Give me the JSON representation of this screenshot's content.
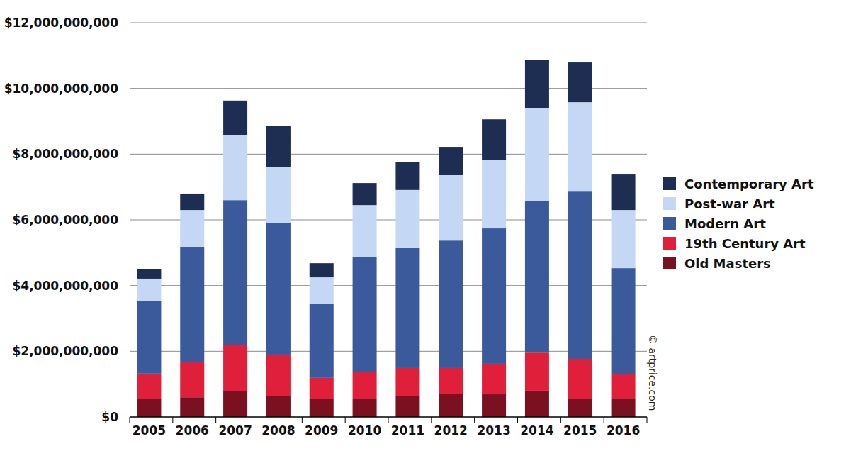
{
  "chart_data": {
    "type": "bar",
    "stacked": true,
    "grid": true,
    "legend": "right",
    "annotation": "© artprice.com",
    "categories": [
      "2005",
      "2006",
      "2007",
      "2008",
      "2009",
      "2010",
      "2011",
      "2012",
      "2013",
      "2014",
      "2015",
      "2016"
    ],
    "ylim": [
      0,
      12000000000
    ],
    "yticks": [
      {
        "value": 0,
        "label": "$0"
      },
      {
        "value": 2000000000,
        "label": "$2,000,000,000"
      },
      {
        "value": 4000000000,
        "label": "$4,000,000,000"
      },
      {
        "value": 6000000000,
        "label": "$6,000,000,000"
      },
      {
        "value": 8000000000,
        "label": "$8,000,000,000"
      },
      {
        "value": 10000000000,
        "label": "$10,000,000,000"
      },
      {
        "value": 12000000000,
        "label": "$12,000,000,000"
      }
    ],
    "series": [
      {
        "name": "Old Masters",
        "color": "#7b1020",
        "values": [
          540000000,
          600000000,
          780000000,
          630000000,
          560000000,
          540000000,
          630000000,
          710000000,
          690000000,
          800000000,
          540000000,
          560000000
        ]
      },
      {
        "name": "19th Century Art",
        "color": "#e0203a",
        "values": [
          780000000,
          1080000000,
          1400000000,
          1270000000,
          630000000,
          840000000,
          860000000,
          780000000,
          930000000,
          1160000000,
          1230000000,
          740000000
        ]
      },
      {
        "name": "Modern Art",
        "color": "#3b5a9c",
        "values": [
          2200000000,
          3480000000,
          4420000000,
          4010000000,
          2260000000,
          3480000000,
          3650000000,
          3880000000,
          4120000000,
          4620000000,
          5090000000,
          3230000000
        ]
      },
      {
        "name": "Post-war Art",
        "color": "#c4d8f6",
        "values": [
          690000000,
          1140000000,
          1970000000,
          1690000000,
          800000000,
          1590000000,
          1770000000,
          1990000000,
          2090000000,
          2810000000,
          2720000000,
          1770000000
        ]
      },
      {
        "name": "Contemporary Art",
        "color": "#1e2d52",
        "values": [
          300000000,
          500000000,
          1060000000,
          1250000000,
          430000000,
          670000000,
          860000000,
          840000000,
          1230000000,
          1470000000,
          1210000000,
          1080000000
        ]
      }
    ]
  }
}
